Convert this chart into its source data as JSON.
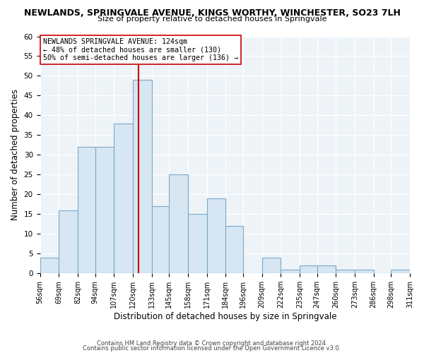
{
  "title": "NEWLANDS, SPRINGVALE AVENUE, KINGS WORTHY, WINCHESTER, SO23 7LH",
  "subtitle": "Size of property relative to detached houses in Springvale",
  "xlabel": "Distribution of detached houses by size in Springvale",
  "ylabel": "Number of detached properties",
  "bar_color": "#d6e6f2",
  "bar_edge_color": "#7aaac8",
  "bins": [
    56,
    69,
    82,
    94,
    107,
    120,
    133,
    145,
    158,
    171,
    184,
    196,
    209,
    222,
    235,
    247,
    260,
    273,
    286,
    298,
    311
  ],
  "bin_labels": [
    "56sqm",
    "69sqm",
    "82sqm",
    "94sqm",
    "107sqm",
    "120sqm",
    "133sqm",
    "145sqm",
    "158sqm",
    "171sqm",
    "184sqm",
    "196sqm",
    "209sqm",
    "222sqm",
    "235sqm",
    "247sqm",
    "260sqm",
    "273sqm",
    "286sqm",
    "298sqm",
    "311sqm"
  ],
  "values": [
    4,
    16,
    32,
    32,
    38,
    49,
    17,
    25,
    15,
    19,
    12,
    0,
    4,
    1,
    2,
    2,
    1,
    1,
    0,
    1
  ],
  "vline_x": 124,
  "vline_color": "#cc0000",
  "annotation_text": "NEWLANDS SPRINGVALE AVENUE: 124sqm\n← 48% of detached houses are smaller (130)\n50% of semi-detached houses are larger (136) →",
  "annotation_box_color": "#ffffff",
  "annotation_box_edge": "#cc0000",
  "ylim": [
    0,
    60
  ],
  "yticks": [
    0,
    5,
    10,
    15,
    20,
    25,
    30,
    35,
    40,
    45,
    50,
    55,
    60
  ],
  "footer1": "Contains HM Land Registry data © Crown copyright and database right 2024.",
  "footer2": "Contains public sector information licensed under the Open Government Licence v3.0.",
  "bg_color": "#ffffff",
  "plot_bg_color": "#eef3f8",
  "grid_color": "#ffffff"
}
